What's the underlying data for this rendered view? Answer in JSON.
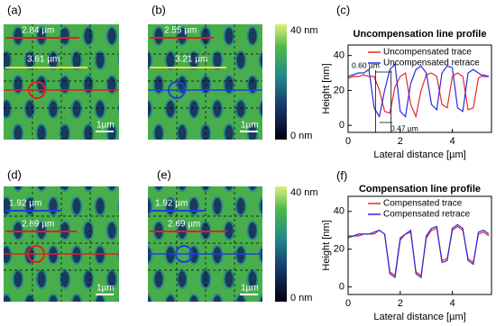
{
  "images": [
    {
      "label": "(a)",
      "annotations": [
        "2.84 µm",
        "3.61 µm"
      ],
      "scale_bar": "1µm"
    },
    {
      "label": "(b)",
      "annotations": [
        "2.55 µm",
        "3.21 µm"
      ],
      "scale_bar": "1µm"
    },
    {
      "label": "(d)",
      "annotations": [
        "1.92 µm",
        "2.69 µm"
      ],
      "scale_bar": "1µm"
    },
    {
      "label": "(e)",
      "annotations": [
        "1.92 µm",
        "2.69 µm"
      ],
      "scale_bar": "1µm"
    }
  ],
  "colorbars": [
    {
      "max_label": "40 nm",
      "min_label": "0 nm"
    },
    {
      "max_label": "40 nm",
      "min_label": "0 nm"
    }
  ],
  "chart_data": [
    {
      "type": "line",
      "label": "(c)",
      "title": "Uncompensation line profile",
      "x_label": "Lateral distance [µm]",
      "y_label": "Height [nm]",
      "x": [
        0,
        0.2,
        0.4,
        0.6,
        0.8,
        1.0,
        1.2,
        1.4,
        1.6,
        1.8,
        2.0,
        2.2,
        2.4,
        2.6,
        2.8,
        3.0,
        3.2,
        3.4,
        3.6,
        3.8,
        4.0,
        4.2,
        4.4,
        4.6,
        4.8,
        5.0,
        5.2,
        5.4
      ],
      "series": [
        {
          "name": "Uncompensated trace",
          "color": "#e8262a",
          "values": [
            27,
            28,
            28,
            29,
            28,
            28,
            20,
            8,
            7,
            22,
            28,
            30,
            12,
            5,
            20,
            29,
            30,
            28,
            12,
            10,
            28,
            30,
            28,
            9,
            10,
            27,
            29,
            28
          ]
        },
        {
          "name": "Uncompensated retrace",
          "color": "#2a2ae0",
          "values": [
            28,
            29,
            30,
            30,
            32,
            10,
            5,
            20,
            32,
            35,
            8,
            5,
            24,
            32,
            34,
            30,
            12,
            9,
            30,
            34,
            33,
            10,
            8,
            30,
            32,
            30,
            28,
            28
          ]
        }
      ],
      "xlim": [
        0,
        5.5
      ],
      "xticks": [
        0,
        2,
        4
      ],
      "ylim": [
        -4,
        46
      ],
      "yticks": [
        0,
        20,
        40
      ],
      "legend": "upper right",
      "annotations": [
        "0.60 µm",
        "0.47 µm"
      ]
    },
    {
      "type": "line",
      "label": "(f)",
      "title": "Compensation line profile",
      "x_label": "Lateral distance [µm]",
      "y_label": "Height [nm]",
      "x": [
        0,
        0.2,
        0.4,
        0.6,
        0.8,
        1.0,
        1.2,
        1.4,
        1.6,
        1.8,
        2.0,
        2.2,
        2.4,
        2.6,
        2.8,
        3.0,
        3.2,
        3.4,
        3.6,
        3.8,
        4.0,
        4.2,
        4.4,
        4.6,
        4.8,
        5.0,
        5.2,
        5.4
      ],
      "series": [
        {
          "name": "Compensated trace",
          "color": "#e8262a",
          "values": [
            27,
            27,
            27,
            28,
            28,
            28,
            30,
            28,
            8,
            6,
            26,
            28,
            29,
            8,
            6,
            26,
            30,
            31,
            14,
            15,
            30,
            32,
            30,
            15,
            13,
            28,
            29,
            27
          ]
        },
        {
          "name": "Compensated retrace",
          "color": "#2a2ae0",
          "values": [
            26,
            27,
            28,
            28,
            28,
            29,
            30,
            28,
            7,
            5,
            25,
            28,
            30,
            7,
            5,
            27,
            31,
            32,
            13,
            14,
            31,
            33,
            31,
            14,
            12,
            29,
            30,
            28
          ]
        }
      ],
      "xlim": [
        0,
        5.5
      ],
      "xticks": [
        0,
        2,
        4
      ],
      "ylim": [
        -4,
        48
      ],
      "yticks": [
        0,
        20,
        40
      ],
      "legend": "upper right"
    }
  ]
}
